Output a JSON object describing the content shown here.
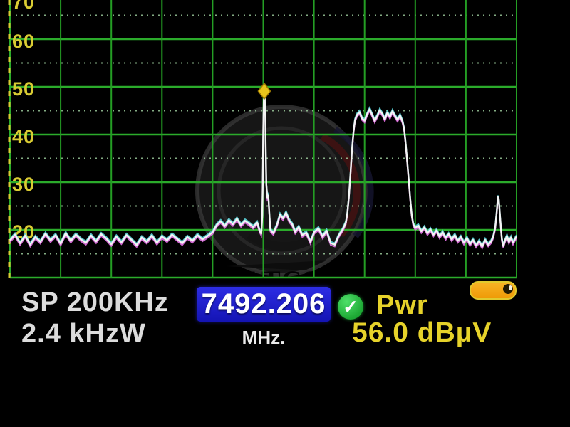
{
  "watermark": {
    "text": "DXSATCS.COM"
  },
  "panel": {
    "span_label": "SP 200KHz",
    "bandwidth_label": "2.4 kHzW",
    "frequency_value": "7492.206",
    "frequency_unit": "MHz.",
    "check_glyph": "✓",
    "power_label": "Pwr",
    "power_value": "56.0 dBµV"
  },
  "colors": {
    "grid_major": "#2bab2b",
    "grid_vertical": "#249e24",
    "grid_minor_dots": "#a6d8a6",
    "axis_dash_yellow": "#d9cc33",
    "tick_label": "#d9cc33",
    "trace_main": "#f4f4f4",
    "trace_fringe_magenta": "#dd6ede",
    "trace_fringe_cyan": "#5cd6dc",
    "marker_fill": "#e8c41c",
    "marker_edge": "#a07c00",
    "watermark_red": "#6b1612",
    "freq_box_blue": "#1b1bcf",
    "yellow_text": "#e6d22a",
    "check_green": "#25c53e",
    "battery_orange": "#f2a00c"
  },
  "chart_data": {
    "type": "line",
    "title": "",
    "xlabel": "",
    "ylabel": "dBµV",
    "ylim": [
      10,
      70
    ],
    "ytick_labels": [
      "70",
      "60",
      "50",
      "40",
      "30",
      "20"
    ],
    "y_minor_step": 5,
    "grid": true,
    "x_axis": {
      "center_frequency_mhz": 7492.206,
      "span_label": "SP 200KHz"
    },
    "legend": "none",
    "marker": {
      "x_frac": 0.502,
      "y_db": 48.2
    },
    "series": [
      {
        "name": "spectrum-trace",
        "points": [
          [
            0.0,
            17.8
          ],
          [
            0.01,
            19.0
          ],
          [
            0.02,
            17.2
          ],
          [
            0.03,
            18.8
          ],
          [
            0.04,
            16.9
          ],
          [
            0.05,
            18.5
          ],
          [
            0.06,
            17.5
          ],
          [
            0.07,
            19.2
          ],
          [
            0.08,
            17.8
          ],
          [
            0.09,
            18.9
          ],
          [
            0.1,
            17.1
          ],
          [
            0.11,
            19.3
          ],
          [
            0.12,
            17.7
          ],
          [
            0.13,
            19.0
          ],
          [
            0.14,
            18.0
          ],
          [
            0.15,
            17.3
          ],
          [
            0.16,
            18.8
          ],
          [
            0.17,
            17.6
          ],
          [
            0.18,
            19.1
          ],
          [
            0.19,
            18.2
          ],
          [
            0.2,
            17.0
          ],
          [
            0.21,
            18.6
          ],
          [
            0.22,
            17.4
          ],
          [
            0.23,
            18.9
          ],
          [
            0.24,
            17.9
          ],
          [
            0.25,
            16.8
          ],
          [
            0.26,
            18.4
          ],
          [
            0.27,
            17.5
          ],
          [
            0.28,
            18.8
          ],
          [
            0.29,
            17.3
          ],
          [
            0.3,
            18.6
          ],
          [
            0.31,
            17.8
          ],
          [
            0.32,
            19.0
          ],
          [
            0.33,
            18.1
          ],
          [
            0.34,
            17.2
          ],
          [
            0.35,
            18.5
          ],
          [
            0.36,
            17.7
          ],
          [
            0.37,
            18.9
          ],
          [
            0.38,
            18.0
          ],
          [
            0.39,
            18.7
          ],
          [
            0.4,
            19.5
          ],
          [
            0.408,
            21.0
          ],
          [
            0.416,
            21.8
          ],
          [
            0.424,
            20.8
          ],
          [
            0.432,
            22.0
          ],
          [
            0.44,
            21.2
          ],
          [
            0.448,
            22.3
          ],
          [
            0.456,
            21.0
          ],
          [
            0.464,
            21.9
          ],
          [
            0.472,
            21.3
          ],
          [
            0.48,
            20.6
          ],
          [
            0.488,
            21.5
          ],
          [
            0.493,
            19.8
          ],
          [
            0.496,
            19.2
          ],
          [
            0.498,
            23.0
          ],
          [
            0.499,
            30.0
          ],
          [
            0.5,
            41.0
          ],
          [
            0.501,
            47.0
          ],
          [
            0.502,
            48.2
          ],
          [
            0.503,
            47.8
          ],
          [
            0.504,
            44.0
          ],
          [
            0.505,
            36.0
          ],
          [
            0.506,
            29.5
          ],
          [
            0.508,
            26.8
          ],
          [
            0.51,
            27.2
          ],
          [
            0.512,
            23.5
          ],
          [
            0.514,
            20.0
          ],
          [
            0.52,
            19.3
          ],
          [
            0.527,
            21.0
          ],
          [
            0.533,
            23.2
          ],
          [
            0.539,
            22.4
          ],
          [
            0.545,
            23.6
          ],
          [
            0.551,
            22.0
          ],
          [
            0.557,
            21.2
          ],
          [
            0.563,
            19.6
          ],
          [
            0.57,
            20.6
          ],
          [
            0.577,
            18.9
          ],
          [
            0.585,
            19.4
          ],
          [
            0.593,
            17.5
          ],
          [
            0.601,
            19.6
          ],
          [
            0.609,
            20.3
          ],
          [
            0.617,
            18.6
          ],
          [
            0.625,
            19.8
          ],
          [
            0.633,
            17.2
          ],
          [
            0.641,
            16.9
          ],
          [
            0.649,
            18.8
          ],
          [
            0.657,
            20.1
          ],
          [
            0.663,
            21.5
          ],
          [
            0.666,
            23.5
          ],
          [
            0.669,
            27.0
          ],
          [
            0.672,
            31.5
          ],
          [
            0.675,
            36.5
          ],
          [
            0.678,
            40.5
          ],
          [
            0.681,
            43.0
          ],
          [
            0.685,
            44.1
          ],
          [
            0.69,
            44.7
          ],
          [
            0.695,
            43.4
          ],
          [
            0.7,
            42.9
          ],
          [
            0.705,
            44.3
          ],
          [
            0.71,
            45.3
          ],
          [
            0.715,
            44.1
          ],
          [
            0.72,
            42.9
          ],
          [
            0.725,
            43.9
          ],
          [
            0.73,
            45.1
          ],
          [
            0.735,
            44.3
          ],
          [
            0.74,
            43.2
          ],
          [
            0.745,
            44.6
          ],
          [
            0.75,
            43.7
          ],
          [
            0.755,
            44.9
          ],
          [
            0.76,
            43.9
          ],
          [
            0.765,
            43.1
          ],
          [
            0.77,
            44.0
          ],
          [
            0.775,
            42.7
          ],
          [
            0.778,
            41.2
          ],
          [
            0.781,
            38.2
          ],
          [
            0.784,
            34.6
          ],
          [
            0.787,
            30.6
          ],
          [
            0.79,
            26.6
          ],
          [
            0.793,
            23.2
          ],
          [
            0.796,
            21.2
          ],
          [
            0.8,
            20.4
          ],
          [
            0.806,
            20.9
          ],
          [
            0.812,
            19.7
          ],
          [
            0.818,
            20.5
          ],
          [
            0.824,
            19.3
          ],
          [
            0.83,
            20.1
          ],
          [
            0.836,
            19.0
          ],
          [
            0.842,
            19.9
          ],
          [
            0.848,
            18.6
          ],
          [
            0.854,
            19.5
          ],
          [
            0.86,
            18.3
          ],
          [
            0.866,
            19.1
          ],
          [
            0.872,
            18.0
          ],
          [
            0.878,
            18.9
          ],
          [
            0.884,
            17.7
          ],
          [
            0.89,
            18.5
          ],
          [
            0.896,
            17.3
          ],
          [
            0.902,
            18.3
          ],
          [
            0.908,
            17.0
          ],
          [
            0.914,
            17.9
          ],
          [
            0.92,
            16.7
          ],
          [
            0.926,
            17.6
          ],
          [
            0.932,
            16.5
          ],
          [
            0.938,
            17.9
          ],
          [
            0.944,
            16.9
          ],
          [
            0.95,
            17.6
          ],
          [
            0.954,
            18.6
          ],
          [
            0.958,
            20.5
          ],
          [
            0.961,
            24.0
          ],
          [
            0.963,
            26.9
          ],
          [
            0.965,
            26.3
          ],
          [
            0.967,
            23.5
          ],
          [
            0.969,
            20.5
          ],
          [
            0.971,
            18.0
          ],
          [
            0.974,
            16.6
          ],
          [
            0.977,
            17.7
          ],
          [
            0.981,
            18.7
          ],
          [
            0.985,
            17.5
          ],
          [
            0.989,
            18.4
          ],
          [
            0.993,
            17.3
          ],
          [
            0.997,
            18.1
          ],
          [
            1.0,
            18.6
          ]
        ]
      }
    ]
  }
}
